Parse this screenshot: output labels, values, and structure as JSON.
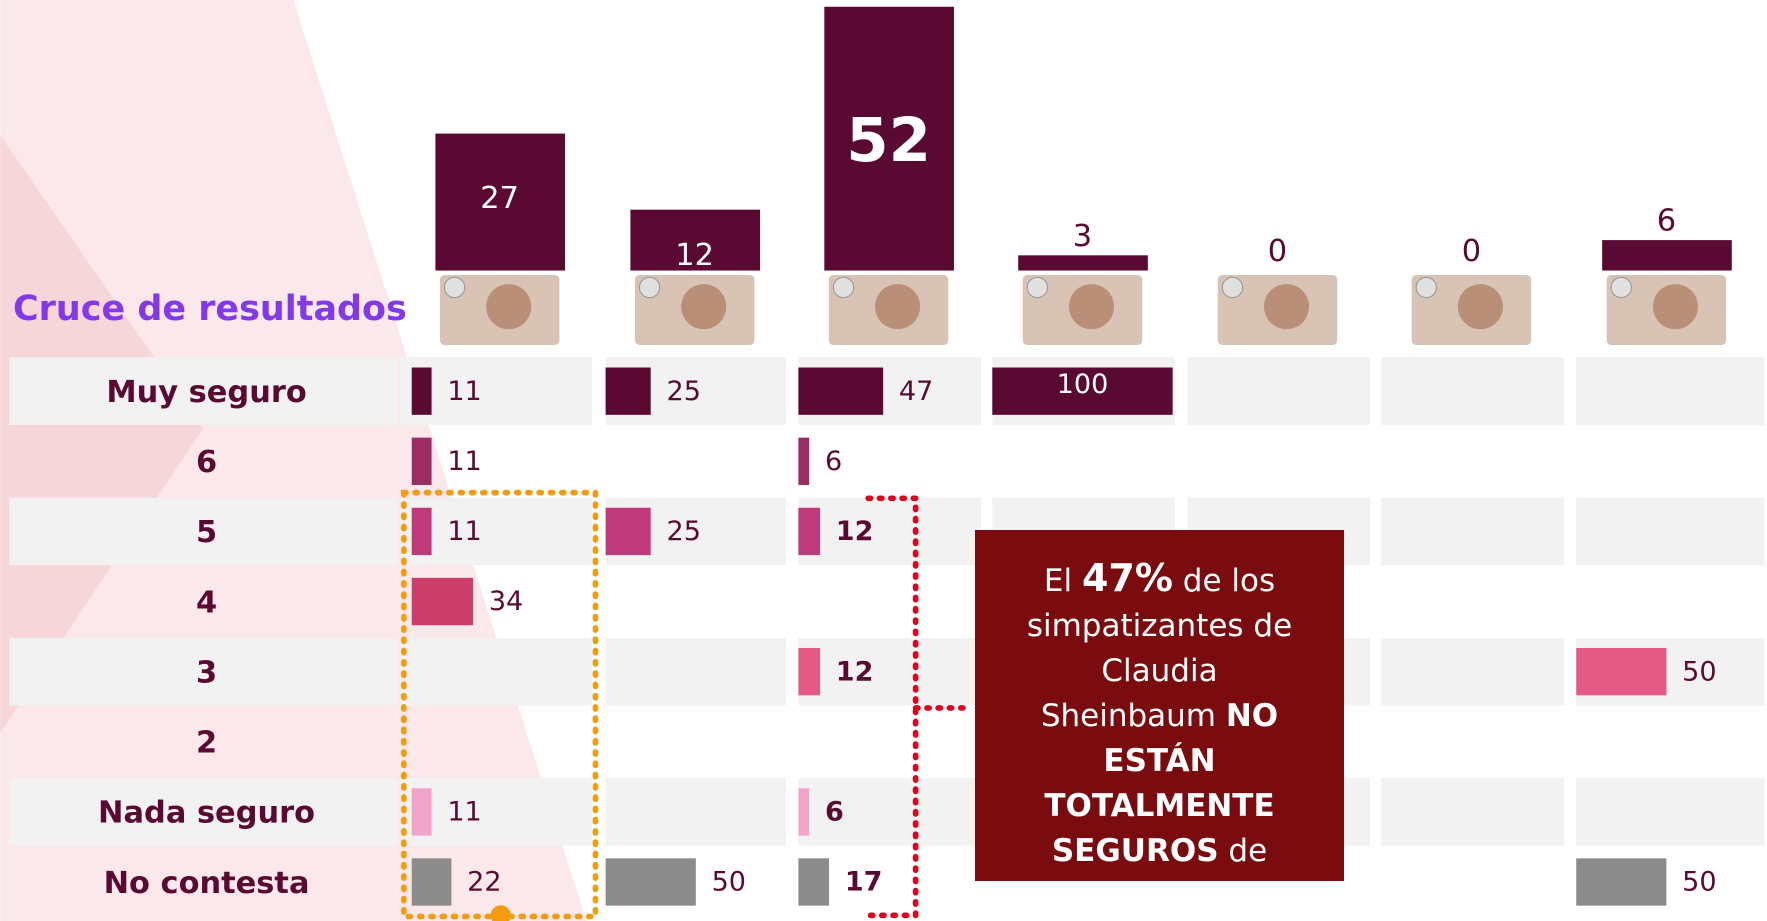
{
  "chart_data": {
    "type": "bar",
    "title": "Cruce de resultados",
    "values": [
      27,
      12,
      52,
      3,
      0,
      0,
      6
    ],
    "color": "#5a0a32",
    "series": [
      {
        "name": "Muy seguro",
        "color": "#5a0a32",
        "values": [
          11,
          25,
          47,
          100,
          null,
          null,
          null
        ]
      },
      {
        "name": "6",
        "color": "#9b2d64",
        "values": [
          11,
          null,
          6,
          null,
          null,
          null,
          null
        ]
      },
      {
        "name": "5",
        "color": "#c0397a",
        "values": [
          11,
          25,
          12,
          null,
          null,
          null,
          null
        ]
      },
      {
        "name": "4",
        "color": "#cc3d6b",
        "values": [
          34,
          null,
          null,
          null,
          null,
          null,
          null
        ]
      },
      {
        "name": "3",
        "color": "#e35a86",
        "values": [
          null,
          null,
          12,
          null,
          null,
          null,
          50
        ]
      },
      {
        "name": "2",
        "color": "#e87aa5",
        "values": [
          null,
          null,
          null,
          null,
          null,
          null,
          null
        ]
      },
      {
        "name": "Nada seguro",
        "color": "#f2a3cb",
        "values": [
          11,
          null,
          6,
          null,
          null,
          null,
          null
        ]
      },
      {
        "name": "No contesta",
        "color": "#8c8c8c",
        "values": [
          22,
          50,
          17,
          null,
          null,
          null,
          50
        ]
      }
    ],
    "callout": [
      "El ",
      "47%",
      " de los simpatizantes de Claudia Sheinbaum ",
      "NO ESTÁN TOTALMENTE SEGUROS",
      " de votar por ella."
    ]
  }
}
